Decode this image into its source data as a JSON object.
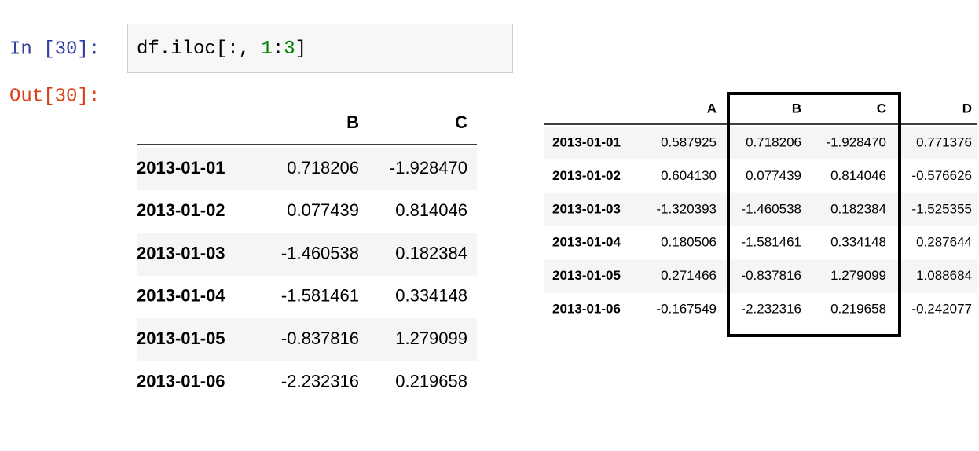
{
  "input_prompt": "In [30]:",
  "code": [
    "df.iloc[:, ",
    "1",
    ":",
    "3",
    "]"
  ],
  "output_prompt": "Out[30]:",
  "output_table": {
    "columns": [
      "B",
      "C"
    ],
    "rows": [
      [
        "2013-01-01",
        "0.718206",
        "-1.928470"
      ],
      [
        "2013-01-02",
        "0.077439",
        "0.814046"
      ],
      [
        "2013-01-03",
        "-1.460538",
        "0.182384"
      ],
      [
        "2013-01-04",
        "-1.581461",
        "0.334148"
      ],
      [
        "2013-01-05",
        "-0.837816",
        "1.279099"
      ],
      [
        "2013-01-06",
        "-2.232316",
        "0.219658"
      ]
    ]
  },
  "full_table": {
    "columns": [
      "A",
      "B",
      "C",
      "D"
    ],
    "rows": [
      [
        "2013-01-01",
        "0.587925",
        "0.718206",
        "-1.928470",
        "0.771376"
      ],
      [
        "2013-01-02",
        "0.604130",
        "0.077439",
        "0.814046",
        "-0.576626"
      ],
      [
        "2013-01-03",
        "-1.320393",
        "-1.460538",
        "0.182384",
        "-1.525355"
      ],
      [
        "2013-01-04",
        "0.180506",
        "-1.581461",
        "0.334148",
        "0.287644"
      ],
      [
        "2013-01-05",
        "0.271466",
        "-0.837816",
        "1.279099",
        "1.088684"
      ],
      [
        "2013-01-06",
        "-0.167549",
        "-2.232316",
        "0.219658",
        "-0.242077"
      ]
    ]
  }
}
